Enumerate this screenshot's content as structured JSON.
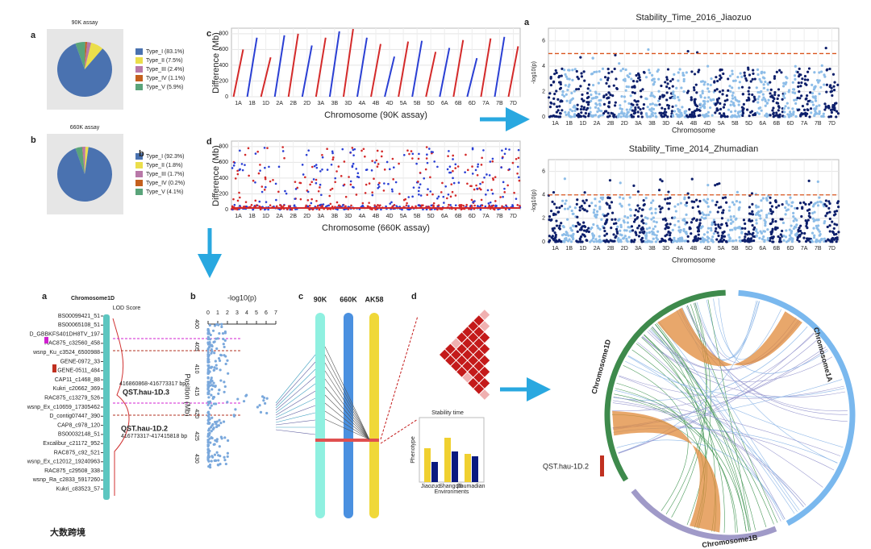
{
  "pie_90k": {
    "label": "a",
    "title": "90K assay",
    "legend": [
      "Type_I (83.1%)",
      "Type_II (7.5%)",
      "Type_III (2.4%)",
      "Type_IV (1.1%)",
      "Type_V (5.9%)"
    ],
    "values": [
      83.1,
      7.5,
      2.4,
      1.1,
      5.9
    ],
    "colors": [
      "#4a72b0",
      "#ebde4b",
      "#b878a8",
      "#c4601e",
      "#5aa47a"
    ]
  },
  "pie_660k": {
    "label": "b",
    "title": "660K assay",
    "legend": [
      "Type_I (92.3%)",
      "Type_II (1.8%)",
      "Type_III (1.7%)",
      "Type_IV (0.2%)",
      "Type_V (4.1%)"
    ],
    "values": [
      92.3,
      1.8,
      1.7,
      0.2,
      4.1
    ],
    "colors": [
      "#4a72b0",
      "#ebde4b",
      "#b878a8",
      "#c4601e",
      "#5aa47a"
    ]
  },
  "diff_90k": {
    "label": "c",
    "ylabel": "Difference (Mb)",
    "xlabel": "Chromosome (90K assay)",
    "categories": [
      "1A",
      "1B",
      "1D",
      "2A",
      "2B",
      "2D",
      "3A",
      "3B",
      "3D",
      "4A",
      "4B",
      "4D",
      "5A",
      "5B",
      "5D",
      "6A",
      "6B",
      "6D",
      "7A",
      "7B",
      "7D"
    ],
    "values": [
      600,
      750,
      500,
      780,
      800,
      650,
      750,
      830,
      860,
      750,
      670,
      510,
      700,
      710,
      570,
      620,
      720,
      490,
      740,
      760,
      640
    ],
    "colors": [
      "#d42a2a",
      "#2a3fd4"
    ],
    "ylim": [
      0,
      870
    ],
    "yticks": [
      0,
      200,
      400,
      600,
      800
    ]
  },
  "diff_660k": {
    "label": "d",
    "ylabel": "Difference (Mb)",
    "xlabel": "Chromosome (660K assay)",
    "categories": [
      "1A",
      "1B",
      "1D",
      "2A",
      "2B",
      "2D",
      "3A",
      "3B",
      "3D",
      "4A",
      "4B",
      "4D",
      "5A",
      "5B",
      "5D",
      "6A",
      "6B",
      "6D",
      "7A",
      "7B",
      "7D"
    ],
    "ylim": [
      0,
      870
    ],
    "yticks": [
      0,
      200,
      400,
      600,
      800
    ]
  },
  "manhattan_a": {
    "label": "a",
    "title": "Stability_Time_2016_Jiaozuo",
    "xlabel": "Chromosome",
    "ylabel": "-log10(p)",
    "categories": [
      "1A",
      "1B",
      "1D",
      "2A",
      "2B",
      "2D",
      "3A",
      "3B",
      "3D",
      "4A",
      "4B",
      "4D",
      "5A",
      "5B",
      "5D",
      "6A",
      "6B",
      "6D",
      "7A",
      "7B",
      "7D"
    ],
    "ylim": [
      0,
      7
    ],
    "yticks": [
      0,
      2,
      4,
      6
    ],
    "threshold": 5
  },
  "manhattan_b": {
    "label": "b",
    "title": "Stability_Time_2014_Zhumadian",
    "xlabel": "Chromosome",
    "ylabel": "-log10(p)",
    "categories": [
      "1A",
      "1B",
      "1D",
      "2A",
      "2B",
      "2D",
      "3A",
      "3B",
      "3D",
      "4A",
      "4B",
      "4D",
      "5A",
      "5B",
      "5D",
      "6A",
      "6B",
      "6D",
      "7A",
      "7B",
      "7D"
    ],
    "ylim": [
      0,
      7
    ],
    "yticks": [
      0,
      2,
      4,
      6
    ],
    "threshold": 4
  },
  "bottom": {
    "a": {
      "label": "a",
      "title": "Chromosome1D",
      "lod": "LOD Score",
      "qtl1": "QST.hau-1D.3",
      "qtl1_pos": "416860868-416773317 bp",
      "qtl2": "QST.hau-1D.2",
      "qtl2_pos": "416773317-417415818 bp",
      "markers": [
        "BS00099421_51",
        "BS00065108_51",
        "D_GBBKFS401DH8TV_197",
        "RAC875_c32560_458",
        "wsnp_Ku_c3524_6500988",
        "GENE-0972_33",
        "GENE-0511_484",
        "CAP11_c1468_88",
        "Kukri_c20662_369",
        "RAC875_c13279_526",
        "wsnp_Ex_c10659_17305462",
        "D_contig07447_390",
        "CAP8_c978_120",
        "BS00032148_51",
        "Excalibur_c21172_952",
        "RAC875_c92_521",
        "wsnp_Ex_c12012_19240963",
        "RAC875_c29508_338",
        "wsnp_Ra_c2833_5917260",
        "Kukri_c83523_57"
      ]
    },
    "b": {
      "label": "b",
      "xlabel": "-log10(p)",
      "ylabel": "Position (Mb)",
      "xticks": [
        0,
        1,
        2,
        3,
        4,
        5,
        6,
        7
      ],
      "yticks": [
        400,
        405,
        410,
        415,
        420,
        425,
        430
      ]
    },
    "c": {
      "label": "c",
      "columns": [
        "90K",
        "660K",
        "AK58"
      ]
    },
    "d": {
      "label": "d",
      "title": "Stability time",
      "xlabel": "Environments",
      "ylabel": "Phenotype",
      "categories": [
        "Jiaozuo",
        "Shangqiu",
        "Zhumadian"
      ]
    },
    "circos": {
      "chromosomes": [
        "Chromosome1D",
        "Chromosome1A",
        "Chromosome1B"
      ],
      "qtl": "QST.hau-1D.2"
    }
  },
  "watermark": "大数跨境"
}
